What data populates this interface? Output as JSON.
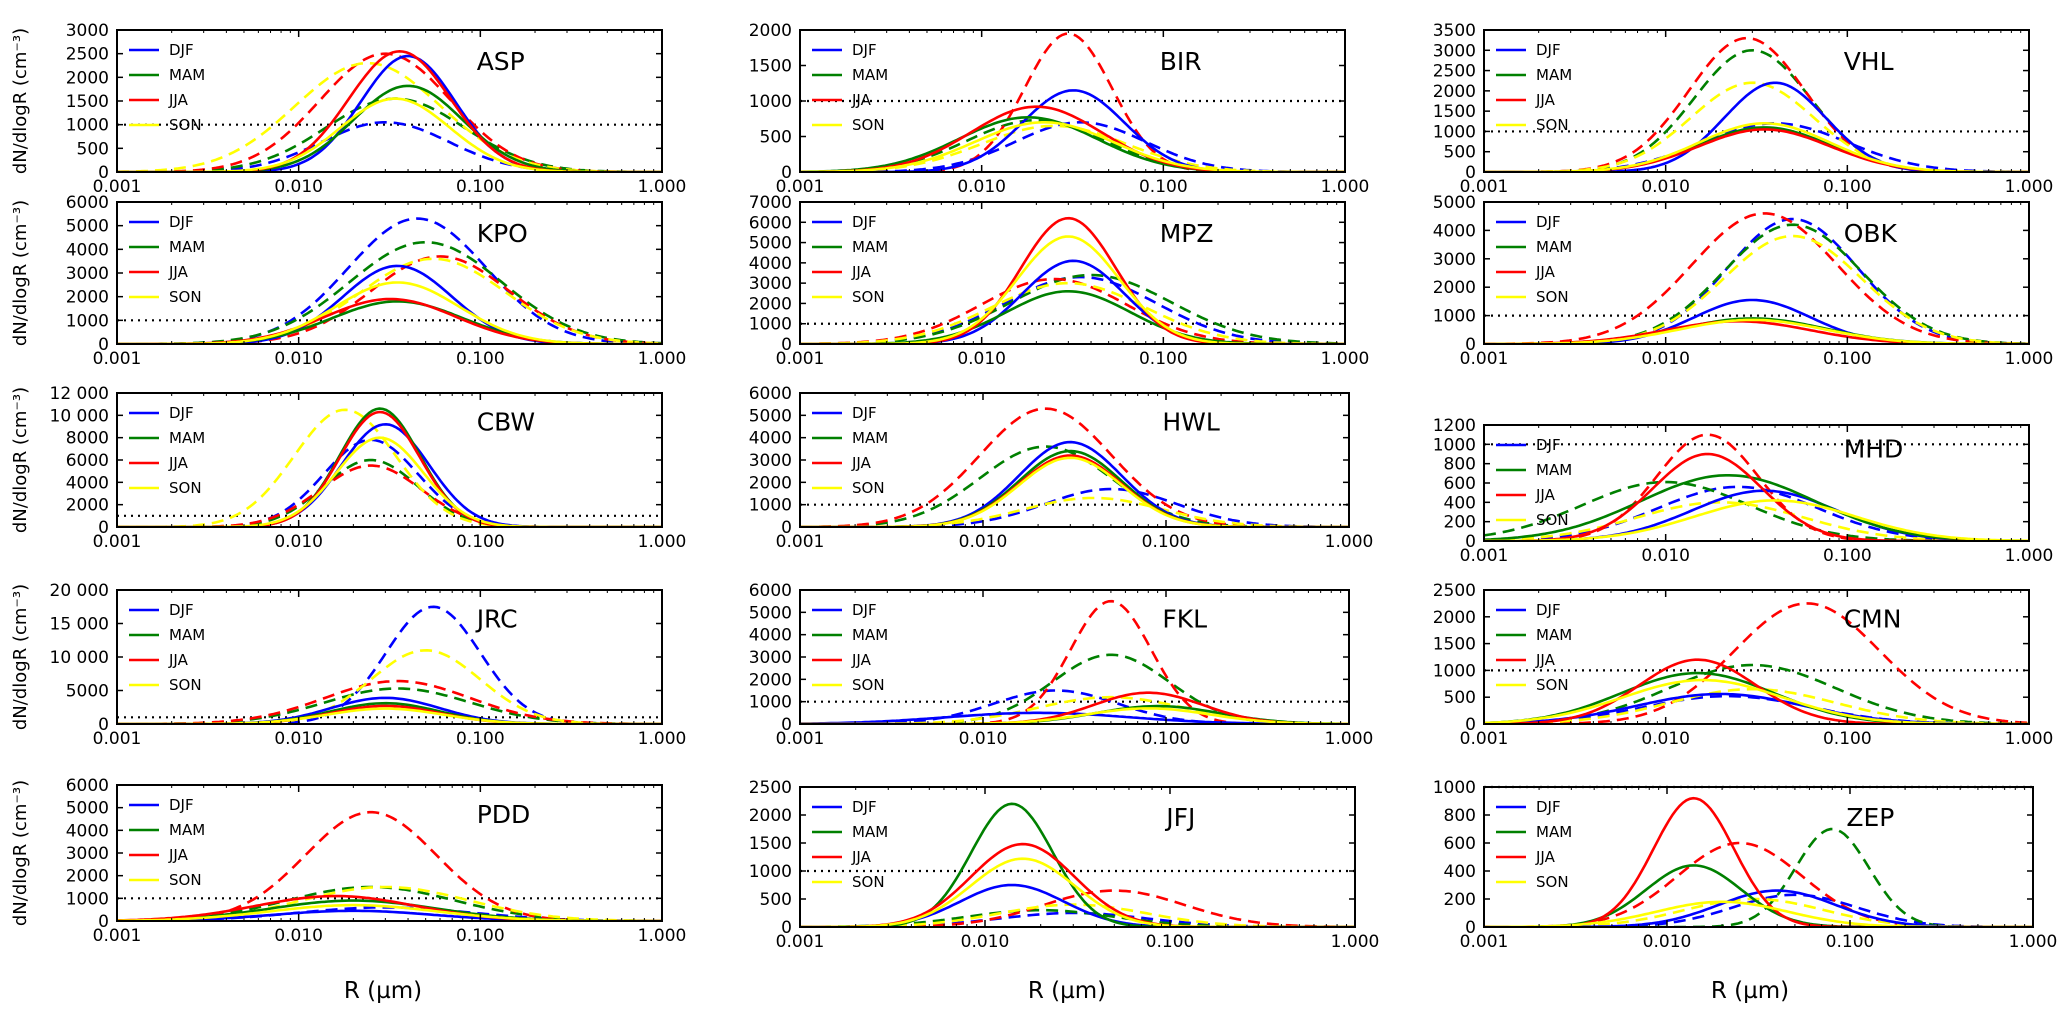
{
  "figure": {
    "xlabel": "R (µm)",
    "ylabel": "dN/dlogR (cm⁻³)",
    "x_ticks": [
      "0.001",
      "0.010",
      "0.100",
      "1.000"
    ],
    "legend": [
      "DJF",
      "MAM",
      "JJA",
      "SON"
    ],
    "season_colors": {
      "DJF": "#0000ff",
      "MAM": "#008000",
      "JJA": "#ff0000",
      "SON": "#ffff00"
    },
    "line_styles": [
      "solid",
      "dashed"
    ],
    "reference_line": 1000
  },
  "chart_data": [
    {
      "type": "line",
      "station": "ASP",
      "xscale": "log",
      "xlim": [
        0.001,
        1.0
      ],
      "ylim": [
        0,
        3000
      ],
      "yticks": [
        "0",
        "500",
        "1000",
        "1500",
        "2000",
        "2500",
        "3000"
      ],
      "solid": {
        "DJF": {
          "peak_r": 0.04,
          "peak": 2450,
          "width": 0.26
        },
        "MAM": {
          "peak_r": 0.04,
          "peak": 1820,
          "width": 0.3
        },
        "JJA": {
          "peak_r": 0.036,
          "peak": 2550,
          "width": 0.28
        },
        "SON": {
          "peak_r": 0.034,
          "peak": 1550,
          "width": 0.3
        }
      },
      "dashed": {
        "DJF": {
          "peak_r": 0.03,
          "peak": 1050,
          "width": 0.35
        },
        "MAM": {
          "peak_r": 0.034,
          "peak": 1550,
          "width": 0.38
        },
        "JJA": {
          "peak_r": 0.03,
          "peak": 2500,
          "width": 0.36
        },
        "SON": {
          "peak_r": 0.024,
          "peak": 2300,
          "width": 0.4
        }
      }
    },
    {
      "type": "line",
      "station": "BIR",
      "xscale": "log",
      "xlim": [
        0.001,
        1.0
      ],
      "ylim": [
        0,
        2000
      ],
      "yticks": [
        "0",
        "500",
        "1000",
        "1500",
        "2000"
      ],
      "solid": {
        "DJF": {
          "peak_r": 0.032,
          "peak": 1150,
          "width": 0.28
        },
        "MAM": {
          "peak_r": 0.018,
          "peak": 770,
          "width": 0.38
        },
        "JJA": {
          "peak_r": 0.02,
          "peak": 920,
          "width": 0.36
        },
        "SON": {
          "peak_r": 0.022,
          "peak": 700,
          "width": 0.38
        }
      },
      "dashed": {
        "DJF": {
          "peak_r": 0.035,
          "peak": 700,
          "width": 0.36
        },
        "MAM": {
          "peak_r": 0.02,
          "peak": 730,
          "width": 0.38
        },
        "JJA": {
          "peak_r": 0.03,
          "peak": 1950,
          "width": 0.24
        },
        "SON": {
          "peak_r": 0.025,
          "peak": 650,
          "width": 0.4
        }
      }
    },
    {
      "type": "line",
      "station": "VHL",
      "xscale": "log",
      "xlim": [
        0.001,
        1.0
      ],
      "ylim": [
        0,
        3500
      ],
      "yticks": [
        "0",
        "500",
        "1000",
        "1500",
        "2000",
        "2500",
        "3000",
        "3500"
      ],
      "solid": {
        "DJF": {
          "peak_r": 0.04,
          "peak": 2200,
          "width": 0.28
        },
        "MAM": {
          "peak_r": 0.035,
          "peak": 1100,
          "width": 0.36
        },
        "JJA": {
          "peak_r": 0.035,
          "peak": 1050,
          "width": 0.36
        },
        "SON": {
          "peak_r": 0.035,
          "peak": 1200,
          "width": 0.36
        }
      },
      "dashed": {
        "DJF": {
          "peak_r": 0.04,
          "peak": 1200,
          "width": 0.4
        },
        "MAM": {
          "peak_r": 0.03,
          "peak": 3000,
          "width": 0.32
        },
        "JJA": {
          "peak_r": 0.028,
          "peak": 3300,
          "width": 0.32
        },
        "SON": {
          "peak_r": 0.03,
          "peak": 2200,
          "width": 0.34
        }
      }
    },
    {
      "type": "line",
      "station": "KPO",
      "xscale": "log",
      "xlim": [
        0.001,
        1.0
      ],
      "ylim": [
        0,
        6000
      ],
      "yticks": [
        "0",
        "1000",
        "2000",
        "3000",
        "4000",
        "5000",
        "6000"
      ],
      "solid": {
        "DJF": {
          "peak_r": 0.035,
          "peak": 3300,
          "width": 0.3
        },
        "MAM": {
          "peak_r": 0.035,
          "peak": 1800,
          "width": 0.36
        },
        "JJA": {
          "peak_r": 0.032,
          "peak": 1900,
          "width": 0.36
        },
        "SON": {
          "peak_r": 0.035,
          "peak": 2600,
          "width": 0.34
        }
      },
      "dashed": {
        "DJF": {
          "peak_r": 0.045,
          "peak": 5300,
          "width": 0.38
        },
        "MAM": {
          "peak_r": 0.05,
          "peak": 4300,
          "width": 0.42
        },
        "JJA": {
          "peak_r": 0.06,
          "peak": 3700,
          "width": 0.38
        },
        "SON": {
          "peak_r": 0.055,
          "peak": 3600,
          "width": 0.4
        }
      }
    },
    {
      "type": "line",
      "station": "MPZ",
      "xscale": "log",
      "xlim": [
        0.001,
        1.0
      ],
      "ylim": [
        0,
        7000
      ],
      "yticks": [
        "0",
        "1000",
        "2000",
        "3000",
        "4000",
        "5000",
        "6000",
        "7000"
      ],
      "solid": {
        "DJF": {
          "peak_r": 0.032,
          "peak": 4100,
          "width": 0.28
        },
        "MAM": {
          "peak_r": 0.03,
          "peak": 2600,
          "width": 0.34
        },
        "JJA": {
          "peak_r": 0.03,
          "peak": 6200,
          "width": 0.26
        },
        "SON": {
          "peak_r": 0.03,
          "peak": 5300,
          "width": 0.28
        }
      },
      "dashed": {
        "DJF": {
          "peak_r": 0.035,
          "peak": 3300,
          "width": 0.42
        },
        "MAM": {
          "peak_r": 0.04,
          "peak": 3400,
          "width": 0.44
        },
        "JJA": {
          "peak_r": 0.025,
          "peak": 3200,
          "width": 0.4
        },
        "SON": {
          "peak_r": 0.03,
          "peak": 3000,
          "width": 0.42
        }
      }
    },
    {
      "type": "line",
      "station": "OBK",
      "xscale": "log",
      "xlim": [
        0.001,
        1.0
      ],
      "ylim": [
        0,
        5000
      ],
      "yticks": [
        "0",
        "1000",
        "2000",
        "3000",
        "4000",
        "5000"
      ],
      "solid": {
        "DJF": {
          "peak_r": 0.03,
          "peak": 1550,
          "width": 0.32
        },
        "MAM": {
          "peak_r": 0.03,
          "peak": 900,
          "width": 0.4
        },
        "JJA": {
          "peak_r": 0.025,
          "peak": 800,
          "width": 0.4
        },
        "SON": {
          "peak_r": 0.03,
          "peak": 850,
          "width": 0.4
        }
      },
      "dashed": {
        "DJF": {
          "peak_r": 0.05,
          "peak": 4400,
          "width": 0.36
        },
        "MAM": {
          "peak_r": 0.05,
          "peak": 4200,
          "width": 0.38
        },
        "JJA": {
          "peak_r": 0.035,
          "peak": 4600,
          "width": 0.4
        },
        "SON": {
          "peak_r": 0.05,
          "peak": 3800,
          "width": 0.38
        }
      }
    },
    {
      "type": "line",
      "station": "CBW",
      "xscale": "log",
      "xlim": [
        0.001,
        1.0
      ],
      "ylim": [
        0,
        12000
      ],
      "yticks": [
        "0",
        "2000",
        "4000",
        "6000",
        "8000",
        "10 000",
        "12 000"
      ],
      "solid": {
        "DJF": {
          "peak_r": 0.03,
          "peak": 9200,
          "width": 0.24
        },
        "MAM": {
          "peak_r": 0.028,
          "peak": 10600,
          "width": 0.22
        },
        "JJA": {
          "peak_r": 0.028,
          "peak": 10300,
          "width": 0.22
        },
        "SON": {
          "peak_r": 0.028,
          "peak": 8000,
          "width": 0.24
        }
      },
      "dashed": {
        "DJF": {
          "peak_r": 0.025,
          "peak": 7800,
          "width": 0.26
        },
        "MAM": {
          "peak_r": 0.025,
          "peak": 6000,
          "width": 0.26
        },
        "JJA": {
          "peak_r": 0.025,
          "peak": 5500,
          "width": 0.28
        },
        "SON": {
          "peak_r": 0.018,
          "peak": 10500,
          "width": 0.28
        }
      }
    },
    {
      "type": "line",
      "station": "HWL",
      "xscale": "log",
      "xlim": [
        0.001,
        1.0
      ],
      "ylim": [
        0,
        6000
      ],
      "yticks": [
        "0",
        "1000",
        "2000",
        "3000",
        "4000",
        "5000",
        "6000"
      ],
      "solid": {
        "DJF": {
          "peak_r": 0.03,
          "peak": 3800,
          "width": 0.28
        },
        "MAM": {
          "peak_r": 0.03,
          "peak": 3400,
          "width": 0.28
        },
        "JJA": {
          "peak_r": 0.03,
          "peak": 3200,
          "width": 0.28
        },
        "SON": {
          "peak_r": 0.03,
          "peak": 3100,
          "width": 0.28
        }
      },
      "dashed": {
        "DJF": {
          "peak_r": 0.05,
          "peak": 1700,
          "width": 0.36
        },
        "MAM": {
          "peak_r": 0.022,
          "peak": 3600,
          "width": 0.36
        },
        "JJA": {
          "peak_r": 0.022,
          "peak": 5300,
          "width": 0.36
        },
        "SON": {
          "peak_r": 0.04,
          "peak": 1300,
          "width": 0.38
        }
      }
    },
    {
      "type": "line",
      "station": "MHD",
      "xscale": "log",
      "xlim": [
        0.001,
        1.0
      ],
      "ylim": [
        0,
        1200
      ],
      "yticks": [
        "0",
        "200",
        "400",
        "600",
        "800",
        "1000",
        "1200"
      ],
      "solid": {
        "DJF": {
          "peak_r": 0.035,
          "peak": 520,
          "width": 0.4
        },
        "MAM": {
          "peak_r": 0.022,
          "peak": 680,
          "width": 0.48
        },
        "JJA": {
          "peak_r": 0.017,
          "peak": 900,
          "width": 0.3
        },
        "SON": {
          "peak_r": 0.04,
          "peak": 420,
          "width": 0.44
        }
      },
      "dashed": {
        "DJF": {
          "peak_r": 0.025,
          "peak": 560,
          "width": 0.44
        },
        "MAM": {
          "peak_r": 0.01,
          "peak": 610,
          "width": 0.46
        },
        "JJA": {
          "peak_r": 0.017,
          "peak": 1100,
          "width": 0.28
        },
        "SON": {
          "peak_r": 0.02,
          "peak": 400,
          "width": 0.46
        }
      }
    },
    {
      "type": "line",
      "station": "JRC",
      "xscale": "log",
      "xlim": [
        0.001,
        1.0
      ],
      "ylim": [
        0,
        20000
      ],
      "yticks": [
        "0",
        "5000",
        "10 000",
        "15 000",
        "20 000"
      ],
      "solid": {
        "DJF": {
          "peak_r": 0.03,
          "peak": 3900,
          "width": 0.3
        },
        "MAM": {
          "peak_r": 0.03,
          "peak": 3100,
          "width": 0.3
        },
        "JJA": {
          "peak_r": 0.03,
          "peak": 2700,
          "width": 0.3
        },
        "SON": {
          "peak_r": 0.03,
          "peak": 2300,
          "width": 0.32
        }
      },
      "dashed": {
        "DJF": {
          "peak_r": 0.055,
          "peak": 17500,
          "width": 0.26
        },
        "MAM": {
          "peak_r": 0.035,
          "peak": 5300,
          "width": 0.4
        },
        "JJA": {
          "peak_r": 0.035,
          "peak": 6400,
          "width": 0.4
        },
        "SON": {
          "peak_r": 0.05,
          "peak": 11000,
          "width": 0.3
        }
      }
    },
    {
      "type": "line",
      "station": "FKL",
      "xscale": "log",
      "xlim": [
        0.001,
        1.0
      ],
      "ylim": [
        0,
        6000
      ],
      "yticks": [
        "0",
        "1000",
        "2000",
        "3000",
        "4000",
        "5000",
        "6000"
      ],
      "solid": {
        "DJF": {
          "peak_r": 0.02,
          "peak": 500,
          "width": 0.5
        },
        "MAM": {
          "peak_r": 0.09,
          "peak": 800,
          "width": 0.34
        },
        "JJA": {
          "peak_r": 0.08,
          "peak": 1400,
          "width": 0.3
        },
        "SON": {
          "peak_r": 0.08,
          "peak": 700,
          "width": 0.34
        }
      },
      "dashed": {
        "DJF": {
          "peak_r": 0.025,
          "peak": 1500,
          "width": 0.34
        },
        "MAM": {
          "peak_r": 0.05,
          "peak": 3100,
          "width": 0.32
        },
        "JJA": {
          "peak_r": 0.05,
          "peak": 5500,
          "width": 0.22
        },
        "SON": {
          "peak_r": 0.05,
          "peak": 1200,
          "width": 0.4
        }
      }
    },
    {
      "type": "line",
      "station": "CMN",
      "xscale": "log",
      "xlim": [
        0.001,
        1.0
      ],
      "ylim": [
        0,
        2500
      ],
      "yticks": [
        "0",
        "500",
        "1000",
        "1500",
        "2000",
        "2500"
      ],
      "solid": {
        "DJF": {
          "peak_r": 0.02,
          "peak": 560,
          "width": 0.46
        },
        "MAM": {
          "peak_r": 0.015,
          "peak": 950,
          "width": 0.42
        },
        "JJA": {
          "peak_r": 0.015,
          "peak": 1200,
          "width": 0.32
        },
        "SON": {
          "peak_r": 0.016,
          "peak": 820,
          "width": 0.44
        }
      },
      "dashed": {
        "DJF": {
          "peak_r": 0.022,
          "peak": 520,
          "width": 0.46
        },
        "MAM": {
          "peak_r": 0.03,
          "peak": 1100,
          "width": 0.46
        },
        "JJA": {
          "peak_r": 0.06,
          "peak": 2250,
          "width": 0.4
        },
        "SON": {
          "peak_r": 0.03,
          "peak": 650,
          "width": 0.46
        }
      }
    },
    {
      "type": "line",
      "station": "PDD",
      "xscale": "log",
      "xlim": [
        0.001,
        1.0
      ],
      "ylim": [
        0,
        6000
      ],
      "yticks": [
        "0",
        "1000",
        "2000",
        "3000",
        "4000",
        "5000",
        "6000"
      ],
      "solid": {
        "DJF": {
          "peak_r": 0.02,
          "peak": 450,
          "width": 0.44
        },
        "MAM": {
          "peak_r": 0.02,
          "peak": 900,
          "width": 0.46
        },
        "JJA": {
          "peak_r": 0.016,
          "peak": 1100,
          "width": 0.44
        },
        "SON": {
          "peak_r": 0.02,
          "peak": 700,
          "width": 0.46
        }
      },
      "dashed": {
        "DJF": {
          "peak_r": 0.03,
          "peak": 600,
          "width": 0.48
        },
        "MAM": {
          "peak_r": 0.025,
          "peak": 1500,
          "width": 0.46
        },
        "JJA": {
          "peak_r": 0.025,
          "peak": 4800,
          "width": 0.36
        },
        "SON": {
          "peak_r": 0.03,
          "peak": 1500,
          "width": 0.46
        }
      }
    },
    {
      "type": "line",
      "station": "JFJ",
      "xscale": "log",
      "xlim": [
        0.001,
        1.0
      ],
      "ylim": [
        0,
        2500
      ],
      "yticks": [
        "0",
        "500",
        "1000",
        "1500",
        "2000",
        "2500"
      ],
      "solid": {
        "DJF": {
          "peak_r": 0.014,
          "peak": 750,
          "width": 0.28
        },
        "MAM": {
          "peak_r": 0.014,
          "peak": 2200,
          "width": 0.22
        },
        "JJA": {
          "peak_r": 0.016,
          "peak": 1480,
          "width": 0.28
        },
        "SON": {
          "peak_r": 0.016,
          "peak": 1220,
          "width": 0.28
        }
      },
      "dashed": {
        "DJF": {
          "peak_r": 0.03,
          "peak": 250,
          "width": 0.4
        },
        "MAM": {
          "peak_r": 0.02,
          "peak": 300,
          "width": 0.4
        },
        "JJA": {
          "peak_r": 0.05,
          "peak": 650,
          "width": 0.38
        },
        "SON": {
          "peak_r": 0.03,
          "peak": 400,
          "width": 0.4
        }
      }
    },
    {
      "type": "line",
      "station": "ZEP",
      "xscale": "log",
      "xlim": [
        0.001,
        1.0
      ],
      "ylim": [
        0,
        1000
      ],
      "yticks": [
        "0",
        "200",
        "400",
        "600",
        "800",
        "1000"
      ],
      "solid": {
        "DJF": {
          "peak_r": 0.04,
          "peak": 260,
          "width": 0.32
        },
        "MAM": {
          "peak_r": 0.014,
          "peak": 440,
          "width": 0.26
        },
        "JJA": {
          "peak_r": 0.014,
          "peak": 920,
          "width": 0.22
        },
        "SON": {
          "peak_r": 0.02,
          "peak": 180,
          "width": 0.36
        }
      },
      "dashed": {
        "DJF": {
          "peak_r": 0.05,
          "peak": 230,
          "width": 0.34
        },
        "MAM": {
          "peak_r": 0.08,
          "peak": 700,
          "width": 0.2
        },
        "JJA": {
          "peak_r": 0.025,
          "peak": 600,
          "width": 0.34
        },
        "SON": {
          "peak_r": 0.03,
          "peak": 200,
          "width": 0.38
        }
      }
    }
  ]
}
